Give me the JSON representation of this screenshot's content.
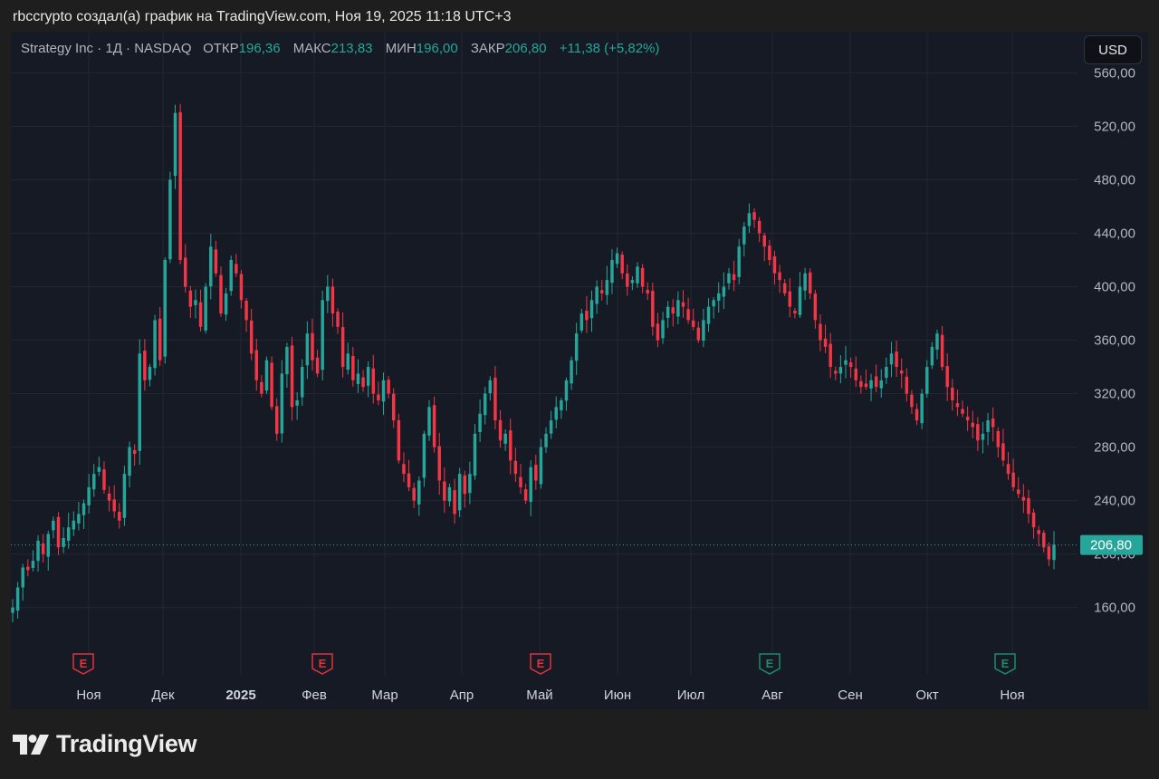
{
  "header": {
    "caption": "rbccrypto создал(а) график на TradingView.com, Ноя 19, 2025 11:18 UTC+3"
  },
  "legend": {
    "symbol": "Strategy Inc · 1Д · NASDAQ",
    "open_label": "ОТКР",
    "open_value": "196,36",
    "high_label": "МАКС",
    "high_value": "213,83",
    "low_label": "МИН",
    "low_value": "196,00",
    "close_label": "ЗАКР",
    "close_value": "206,80",
    "change": "+11,38 (+5,82%)"
  },
  "currency": "USD",
  "footer": {
    "brand": "TradingView"
  },
  "colors": {
    "up": "#26a69a",
    "down": "#f23645",
    "earnings_down": "#e0323d",
    "earnings_up": "#1f8a6a",
    "background": "#161a25"
  },
  "chart_data": {
    "type": "candlestick",
    "symbol": "Strategy Inc",
    "interval": "1Д",
    "exchange": "NASDAQ",
    "currency": "USD",
    "last_price": 206.8,
    "last_price_label": "206,80",
    "ylim": [
      130,
      565
    ],
    "y_ticks": [
      160,
      200,
      240,
      280,
      320,
      360,
      400,
      440,
      480,
      520,
      560
    ],
    "y_tick_labels": [
      "160,00",
      "200,00",
      "240,00",
      "280,00",
      "320,00",
      "360,00",
      "400,00",
      "440,00",
      "480,00",
      "520,00",
      "560,00"
    ],
    "x_labels": [
      {
        "text": "Ноя",
        "bold": false
      },
      {
        "text": "Дек",
        "bold": false
      },
      {
        "text": "2025",
        "bold": true
      },
      {
        "text": "Фев",
        "bold": false
      },
      {
        "text": "Мар",
        "bold": false
      },
      {
        "text": "Апр",
        "bold": false
      },
      {
        "text": "Май",
        "bold": false
      },
      {
        "text": "Июн",
        "bold": false
      },
      {
        "text": "Июл",
        "bold": false
      },
      {
        "text": "Авг",
        "bold": false
      },
      {
        "text": "Сен",
        "bold": false
      },
      {
        "text": "Окт",
        "bold": false
      },
      {
        "text": "Ноя",
        "bold": false
      }
    ],
    "earnings_markers": [
      {
        "month": "Ноя",
        "label": "E",
        "result": "down"
      },
      {
        "month": "Фев",
        "label": "E",
        "result": "down"
      },
      {
        "month": "Май",
        "label": "E",
        "result": "down"
      },
      {
        "month": "Авг",
        "label": "E",
        "result": "up"
      },
      {
        "month": "Ноя",
        "label": "E",
        "result": "up"
      }
    ],
    "closes": [
      160,
      175,
      190,
      188,
      195,
      210,
      200,
      215,
      225,
      205,
      212,
      220,
      225,
      230,
      238,
      250,
      260,
      265,
      248,
      240,
      232,
      225,
      260,
      280,
      275,
      350,
      330,
      340,
      375,
      345,
      420,
      480,
      530,
      420,
      400,
      385,
      390,
      370,
      400,
      430,
      410,
      380,
      395,
      420,
      410,
      390,
      375,
      350,
      330,
      320,
      345,
      310,
      290,
      335,
      355,
      310,
      315,
      340,
      365,
      345,
      335,
      390,
      400,
      380,
      370,
      340,
      350,
      330,
      335,
      325,
      340,
      320,
      315,
      330,
      320,
      300,
      270,
      260,
      250,
      240,
      255,
      290,
      310,
      280,
      255,
      240,
      250,
      230,
      260,
      245,
      260,
      290,
      305,
      320,
      330,
      300,
      285,
      290,
      270,
      260,
      250,
      240,
      265,
      255,
      280,
      290,
      300,
      310,
      315,
      330,
      345,
      365,
      380,
      375,
      390,
      400,
      395,
      405,
      420,
      425,
      410,
      400,
      405,
      415,
      400,
      395,
      370,
      360,
      375,
      385,
      380,
      390,
      385,
      375,
      370,
      360,
      375,
      385,
      390,
      395,
      400,
      410,
      405,
      430,
      445,
      455,
      450,
      440,
      430,
      420,
      410,
      405,
      395,
      385,
      380,
      400,
      410,
      395,
      375,
      360,
      355,
      340,
      335,
      340,
      345,
      340,
      330,
      325,
      325,
      330,
      325,
      330,
      340,
      350,
      340,
      335,
      320,
      310,
      300,
      320,
      340,
      355,
      365,
      340,
      325,
      315,
      310,
      305,
      300,
      295,
      285,
      290,
      300,
      295,
      280,
      270,
      260,
      250,
      245,
      240,
      230,
      220,
      215,
      205,
      196,
      207
    ]
  }
}
